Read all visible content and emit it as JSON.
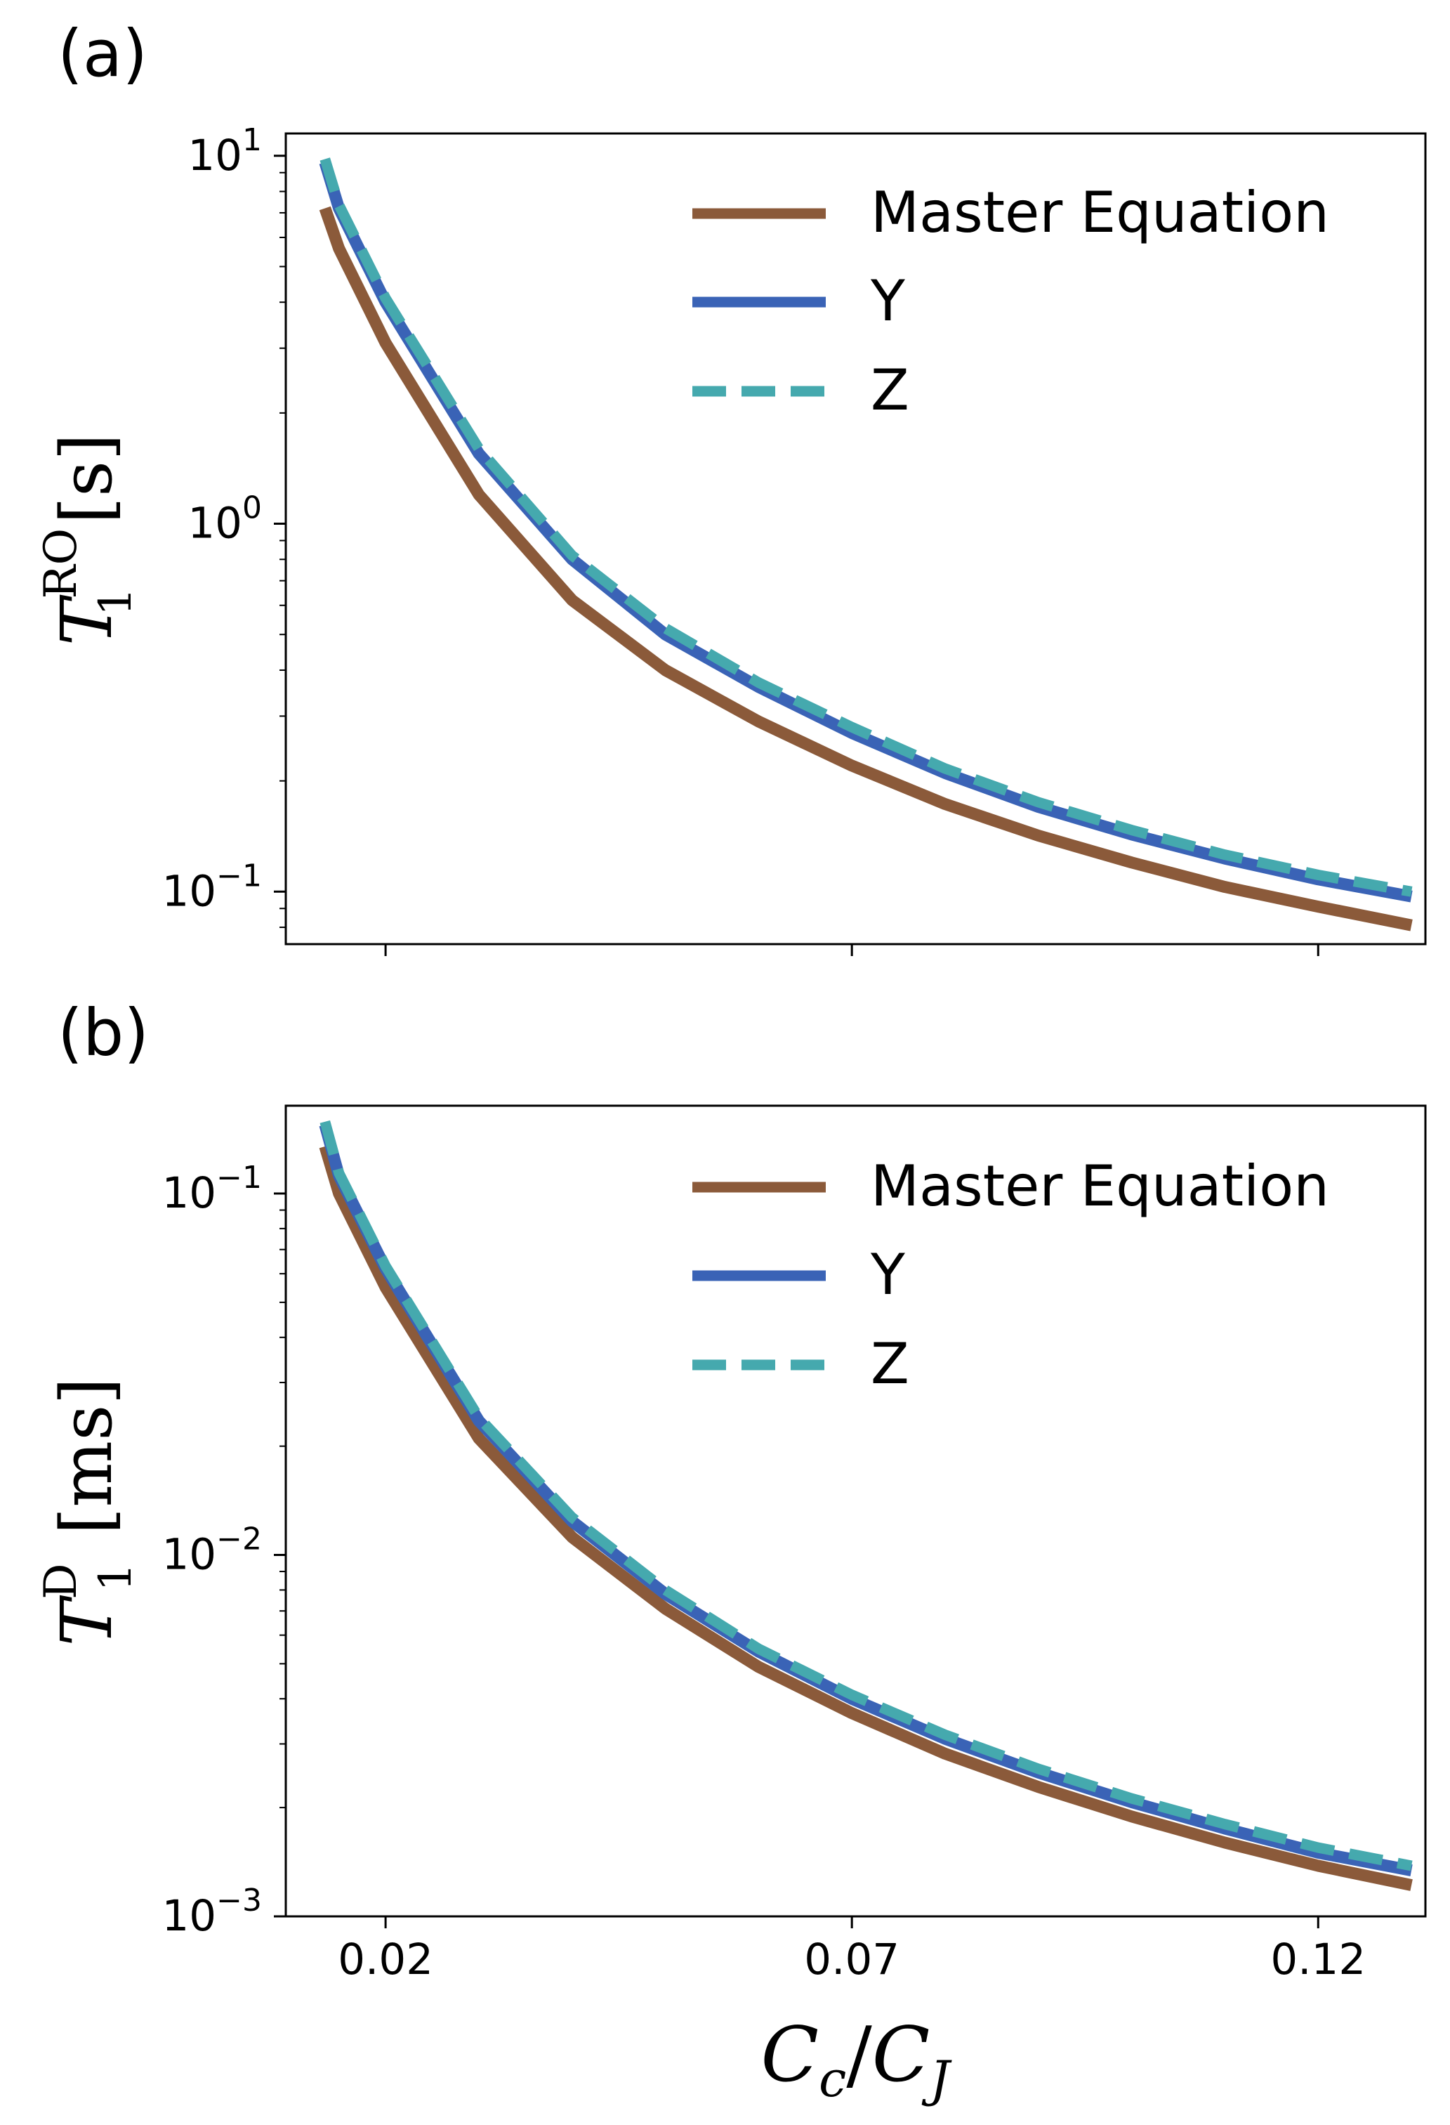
{
  "chart_data": [
    {
      "type": "line",
      "panel_label": "(a)",
      "ylabel": {
        "symbol": "T",
        "sub": "1",
        "sup": "RO",
        "unit": "[s]"
      },
      "xlabel": "",
      "x_scale": "linear",
      "y_scale": "log",
      "xlim": [
        0.0093,
        0.1315
      ],
      "ylim": [
        0.072,
        11.5
      ],
      "x_ticks": [
        0.02,
        0.07,
        0.12
      ],
      "x_tick_labels": [
        "",
        "",
        ""
      ],
      "y_ticks": [
        0.1,
        1,
        10
      ],
      "y_tick_labels": [
        {
          "base": "10",
          "exp": "−1"
        },
        {
          "base": "10",
          "exp": "0"
        },
        {
          "base": "10",
          "exp": "1"
        }
      ],
      "grid": false,
      "legend_position": "top-right",
      "series": [
        {
          "name": "Master Equation",
          "color": "#8b5a3a",
          "style": "solid",
          "x": [
            0.0135,
            0.015,
            0.02,
            0.03,
            0.04,
            0.05,
            0.06,
            0.07,
            0.08,
            0.09,
            0.1,
            0.11,
            0.12,
            0.13
          ],
          "y": [
            7.2,
            5.6,
            3.1,
            1.2,
            0.62,
            0.4,
            0.29,
            0.22,
            0.173,
            0.142,
            0.12,
            0.103,
            0.091,
            0.081
          ]
        },
        {
          "name": "Y",
          "color": "#3a63b6",
          "style": "solid",
          "x": [
            0.0135,
            0.015,
            0.02,
            0.03,
            0.04,
            0.05,
            0.06,
            0.07,
            0.08,
            0.09,
            0.1,
            0.11,
            0.12,
            0.13
          ],
          "y": [
            9.6,
            7.2,
            4.0,
            1.55,
            0.8,
            0.5,
            0.36,
            0.27,
            0.21,
            0.17,
            0.143,
            0.123,
            0.108,
            0.097
          ]
        },
        {
          "name": "Z",
          "color": "#45a9ae",
          "style": "dashed",
          "x": [
            0.0135,
            0.015,
            0.02,
            0.03,
            0.04,
            0.05,
            0.06,
            0.07,
            0.08,
            0.09,
            0.1,
            0.11,
            0.12,
            0.13
          ],
          "y": [
            9.8,
            7.35,
            4.1,
            1.6,
            0.82,
            0.52,
            0.37,
            0.28,
            0.216,
            0.175,
            0.147,
            0.126,
            0.111,
            0.1
          ]
        }
      ]
    },
    {
      "type": "line",
      "panel_label": "(b)",
      "ylabel": {
        "symbol": "T",
        "sub": "1",
        "sup": "D",
        "unit": "[ms]"
      },
      "xlabel": {
        "main": "C",
        "sub1": "c",
        "sep": "/",
        "main2": "C",
        "sub2": "J"
      },
      "x_scale": "linear",
      "y_scale": "log",
      "xlim": [
        0.0093,
        0.1315
      ],
      "ylim": [
        0.001,
        0.175
      ],
      "x_ticks": [
        0.02,
        0.07,
        0.12
      ],
      "x_tick_labels": [
        "0.02",
        "0.07",
        "0.12"
      ],
      "y_ticks": [
        0.001,
        0.01,
        0.1
      ],
      "y_tick_labels": [
        {
          "base": "10",
          "exp": "−3"
        },
        {
          "base": "10",
          "exp": "−2"
        },
        {
          "base": "10",
          "exp": "−1"
        }
      ],
      "grid": false,
      "legend_position": "top-right",
      "series": [
        {
          "name": "Master Equation",
          "color": "#8b5a3a",
          "style": "solid",
          "x": [
            0.0135,
            0.015,
            0.02,
            0.03,
            0.04,
            0.05,
            0.06,
            0.07,
            0.08,
            0.09,
            0.1,
            0.11,
            0.12,
            0.13
          ],
          "y": [
            0.135,
            0.1,
            0.055,
            0.021,
            0.0112,
            0.0071,
            0.0049,
            0.00365,
            0.00282,
            0.00228,
            0.00189,
            0.0016,
            0.00138,
            0.00122
          ]
        },
        {
          "name": "Y",
          "color": "#3a63b6",
          "style": "solid",
          "x": [
            0.0135,
            0.015,
            0.02,
            0.03,
            0.04,
            0.05,
            0.06,
            0.07,
            0.08,
            0.09,
            0.1,
            0.11,
            0.12,
            0.13
          ],
          "y": [
            0.155,
            0.112,
            0.062,
            0.0235,
            0.0124,
            0.0078,
            0.0054,
            0.004,
            0.0031,
            0.0025,
            0.00207,
            0.00175,
            0.0015,
            0.00134
          ]
        },
        {
          "name": "Z",
          "color": "#45a9ae",
          "style": "dashed",
          "x": [
            0.0135,
            0.015,
            0.02,
            0.03,
            0.04,
            0.05,
            0.06,
            0.07,
            0.08,
            0.09,
            0.1,
            0.11,
            0.12,
            0.13
          ],
          "y": [
            0.158,
            0.114,
            0.063,
            0.024,
            0.0127,
            0.008,
            0.0055,
            0.0041,
            0.00318,
            0.00256,
            0.00212,
            0.0018,
            0.00155,
            0.00138
          ]
        }
      ]
    }
  ]
}
